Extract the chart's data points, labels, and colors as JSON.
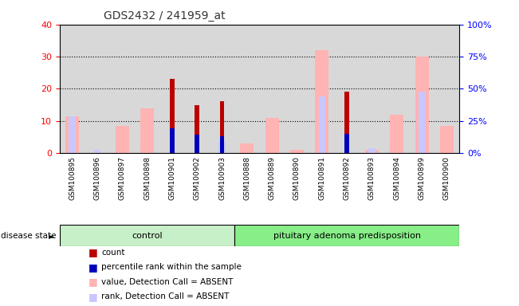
{
  "title": "GDS2432 / 241959_at",
  "samples": [
    "GSM100895",
    "GSM100896",
    "GSM100897",
    "GSM100898",
    "GSM100901",
    "GSM100902",
    "GSM100903",
    "GSM100888",
    "GSM100889",
    "GSM100890",
    "GSM100891",
    "GSM100892",
    "GSM100893",
    "GSM100894",
    "GSM100899",
    "GSM100900"
  ],
  "count": [
    0,
    0,
    0,
    0,
    23,
    15,
    16,
    0,
    0,
    0,
    0,
    19,
    0,
    0,
    0,
    0
  ],
  "percentile_rank": [
    0,
    0,
    0,
    0,
    19,
    14,
    13,
    0,
    0,
    0,
    0,
    15,
    0,
    0,
    0,
    0
  ],
  "value_absent": [
    11.5,
    0,
    8.5,
    14,
    0,
    0,
    0,
    3,
    11,
    1,
    32,
    0,
    1,
    12,
    30,
    8.5
  ],
  "rank_absent": [
    11.5,
    1,
    0,
    0,
    0,
    0,
    3.5,
    0,
    0,
    0,
    17.5,
    0,
    1.5,
    0,
    19,
    0
  ],
  "control_count": 7,
  "pituitary_count": 9,
  "ylim_left": [
    0,
    40
  ],
  "ylim_right": [
    0,
    100
  ],
  "yticks_left": [
    0,
    10,
    20,
    30,
    40
  ],
  "yticks_right": [
    0,
    25,
    50,
    75,
    100
  ],
  "color_count": "#bb0000",
  "color_rank": "#0000bb",
  "color_value_absent": "#ffb3b3",
  "color_rank_absent": "#c8c8ff",
  "color_plot_bg": "#d8d8d8",
  "color_control_bg": "#c8f0c8",
  "color_pituitary_bg": "#88ee88",
  "bar_width": 0.55,
  "legend_items": [
    {
      "label": "count",
      "color": "#bb0000"
    },
    {
      "label": "percentile rank within the sample",
      "color": "#0000bb"
    },
    {
      "label": "value, Detection Call = ABSENT",
      "color": "#ffb3b3"
    },
    {
      "label": "rank, Detection Call = ABSENT",
      "color": "#c8c8ff"
    }
  ],
  "disease_state_label": "disease state",
  "control_label": "control",
  "pituitary_label": "pituitary adenoma predisposition"
}
